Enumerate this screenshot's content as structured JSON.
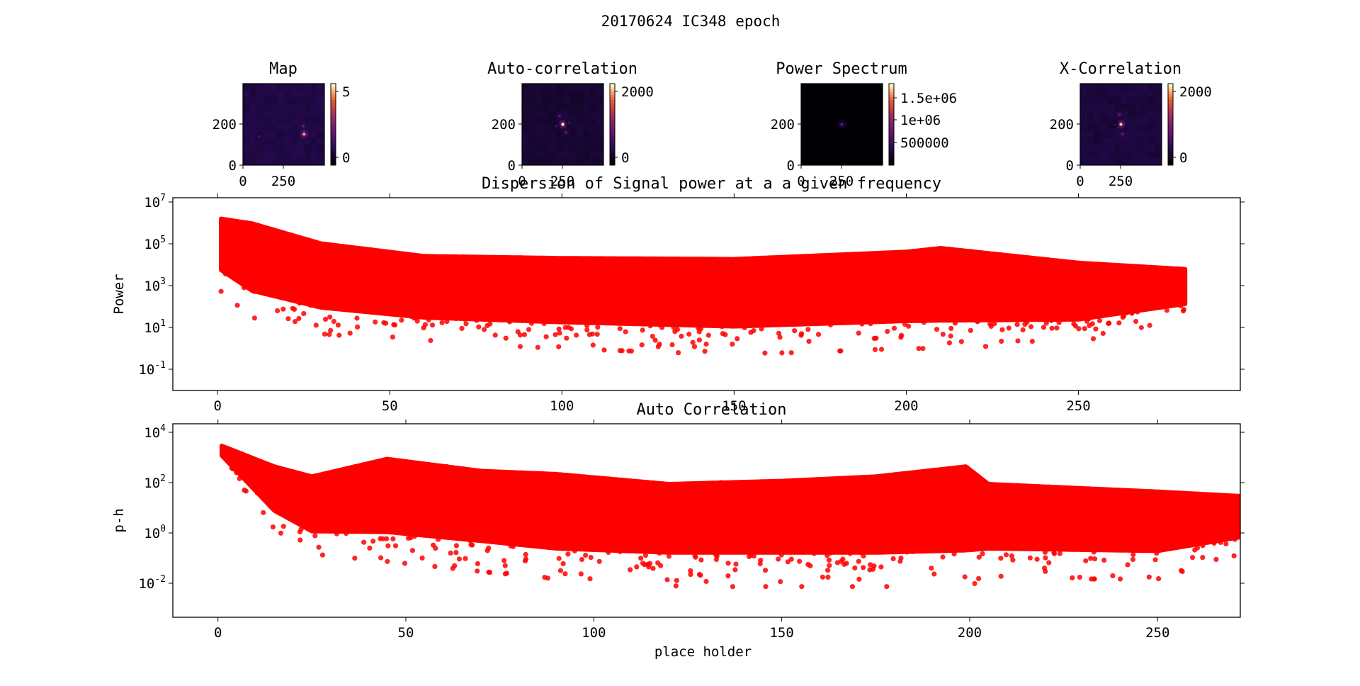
{
  "figure": {
    "suptitle": "20170624 IC348 epoch"
  },
  "chart_data": [
    {
      "type": "heatmap",
      "title": "Map",
      "yticks": [
        "0",
        "200"
      ],
      "xticks": [
        "0",
        "250"
      ],
      "colorbar_ticks": [
        "5",
        "0"
      ],
      "colormap": "magma",
      "value_range": [
        -1,
        6
      ]
    },
    {
      "type": "heatmap",
      "title": "Auto-correlation",
      "yticks": [
        "0",
        "200"
      ],
      "xticks": [
        "0",
        "250"
      ],
      "colorbar_ticks": [
        "2000",
        "0"
      ],
      "colormap": "magma",
      "value_range": [
        -100,
        2100
      ]
    },
    {
      "type": "heatmap",
      "title": "Power Spectrum",
      "yticks": [
        "0",
        "200"
      ],
      "xticks": [
        "0",
        "250"
      ],
      "colorbar_ticks": [
        "1.5e+06",
        "1e+06",
        "500000"
      ],
      "colormap": "magma",
      "value_range": [
        0,
        1800000
      ]
    },
    {
      "type": "heatmap",
      "title": "X-Correlation",
      "yticks": [
        "0",
        "200"
      ],
      "xticks": [
        "0",
        "250"
      ],
      "colorbar_ticks": [
        "2000",
        "0"
      ],
      "colormap": "magma",
      "value_range": [
        -100,
        2100
      ]
    },
    {
      "type": "scatter",
      "title": "Dispersion of Signal power at a a given frequency",
      "xlabel": "",
      "ylabel": "Power",
      "yscale": "log",
      "xlim": [
        -13,
        297
      ],
      "ylim": [
        0.01,
        15000000.0
      ],
      "xticks": [
        "0",
        "50",
        "100",
        "150",
        "200",
        "250"
      ],
      "yticks": [
        "10^7",
        "10^5",
        "10^3",
        "10^1",
        "10^-1"
      ],
      "color": "#ff0000",
      "x_range": [
        1,
        281
      ],
      "envelope": [
        {
          "x": 1,
          "upper": 1500000,
          "median": 100000,
          "lower": 500
        },
        {
          "x": 10,
          "upper": 900000,
          "median": 20000,
          "lower": 30
        },
        {
          "x": 30,
          "upper": 100000,
          "median": 3000,
          "lower": 5
        },
        {
          "x": 60,
          "upper": 25000,
          "median": 800,
          "lower": 2
        },
        {
          "x": 100,
          "upper": 20000,
          "median": 600,
          "lower": 1
        },
        {
          "x": 150,
          "upper": 18000,
          "median": 500,
          "lower": 0.5
        },
        {
          "x": 200,
          "upper": 40000,
          "median": 800,
          "lower": 1
        },
        {
          "x": 210,
          "upper": 60000,
          "median": 900,
          "lower": 1
        },
        {
          "x": 250,
          "upper": 12000,
          "median": 500,
          "lower": 2
        },
        {
          "x": 281,
          "upper": 6000,
          "median": 800,
          "lower": 30
        }
      ]
    },
    {
      "type": "scatter",
      "title": "Auto Correlation",
      "xlabel": "place holder",
      "ylabel": "p-h",
      "yscale": "log",
      "xlim": [
        -12,
        272
      ],
      "ylim": [
        0.0003,
        15000
      ],
      "xticks": [
        "0",
        "50",
        "100",
        "150",
        "200",
        "250"
      ],
      "yticks": [
        "10^4",
        "10^2",
        "10^0",
        "10^-2"
      ],
      "color": "#ff0000",
      "x_range": [
        1,
        272
      ],
      "envelope": [
        {
          "x": 1,
          "upper": 2000,
          "median": 1500,
          "lower": 500
        },
        {
          "x": 15,
          "upper": 300,
          "median": 40,
          "lower": 1
        },
        {
          "x": 25,
          "upper": 120,
          "median": 10,
          "lower": 0.1
        },
        {
          "x": 45,
          "upper": 600,
          "median": 20,
          "lower": 0.05
        },
        {
          "x": 70,
          "upper": 200,
          "median": 10,
          "lower": 0.02
        },
        {
          "x": 90,
          "upper": 150,
          "median": 5,
          "lower": 0.01
        },
        {
          "x": 120,
          "upper": 60,
          "median": 5,
          "lower": 0.005
        },
        {
          "x": 150,
          "upper": 80,
          "median": 5,
          "lower": 0.005
        },
        {
          "x": 175,
          "upper": 120,
          "median": 5,
          "lower": 0.005
        },
        {
          "x": 199,
          "upper": 300,
          "median": 8,
          "lower": 0.005
        },
        {
          "x": 205,
          "upper": 60,
          "median": 5,
          "lower": 0.01
        },
        {
          "x": 250,
          "upper": 30,
          "median": 3,
          "lower": 0.01
        },
        {
          "x": 272,
          "upper": 20,
          "median": 3,
          "lower": 0.1
        }
      ]
    }
  ]
}
